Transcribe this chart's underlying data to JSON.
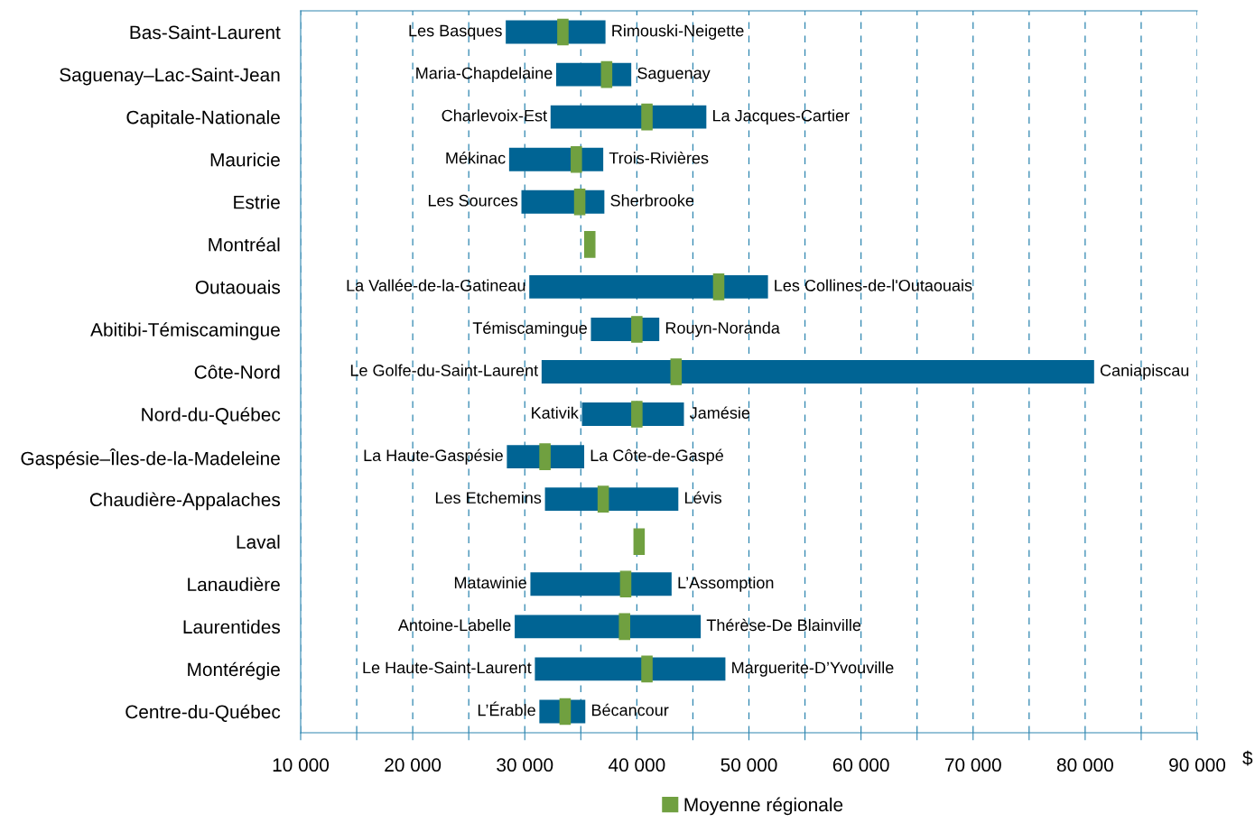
{
  "chart_data": {
    "type": "bar",
    "orientation": "horizontal",
    "categories": [
      "Bas-Saint-Laurent",
      "Saguenay–Lac-Saint-Jean",
      "Capitale-Nationale",
      "Mauricie",
      "Estrie",
      "Montréal",
      "Outaouais",
      "Abitibi-Témiscamingue",
      "Côte-Nord",
      "Nord-du-Québec",
      "Gaspésie–Îles-de-la-Madeleine",
      "Chaudière-Appalaches",
      "Laval",
      "Lanaudière",
      "Laurentides",
      "Montérégie",
      "Centre-du-Québec"
    ],
    "series": [
      {
        "color": "#006494",
        "base": [
          28300,
          32800,
          32300,
          28600,
          29700,
          null,
          30400,
          35900,
          31500,
          35100,
          28400,
          31800,
          null,
          30500,
          29100,
          30900,
          31300
        ],
        "values": [
          8900,
          6700,
          13900,
          8400,
          7400,
          null,
          21300,
          6100,
          49300,
          9100,
          6900,
          11900,
          null,
          12600,
          16600,
          17000,
          4100
        ]
      },
      {
        "type": "scatter",
        "name": "Moyenne régionale",
        "color": "#70a040",
        "marker": "square",
        "values": [
          33400,
          37300,
          40900,
          34600,
          34900,
          35800,
          47300,
          40000,
          43500,
          40000,
          31800,
          37000,
          40200,
          39000,
          38900,
          40900,
          33600
        ]
      }
    ],
    "xlabel": "$",
    "xlim": [
      10000,
      90000
    ],
    "xticks": [
      {
        "value": 10000,
        "label": "10 000"
      },
      {
        "value": 15000,
        "label": null
      },
      {
        "value": 20000,
        "label": "20 000"
      },
      {
        "value": 25000,
        "label": null
      },
      {
        "value": 30000,
        "label": "30 000"
      },
      {
        "value": 35000,
        "label": null
      },
      {
        "value": 40000,
        "label": "40 000"
      },
      {
        "value": 45000,
        "label": null
      },
      {
        "value": 50000,
        "label": "50 000"
      },
      {
        "value": 55000,
        "label": null
      },
      {
        "value": 60000,
        "label": "60 000"
      },
      {
        "value": 65000,
        "label": null
      },
      {
        "value": 70000,
        "label": "70 000"
      },
      {
        "value": 75000,
        "label": null
      },
      {
        "value": 80000,
        "label": "80 000"
      },
      {
        "value": 85000,
        "label": null
      },
      {
        "value": 90000,
        "label": "90 000"
      }
    ],
    "grid": "x",
    "legend": "bottom",
    "annotations": [
      {
        "text": "Les Basques",
        "x": 28300,
        "y": "Bas-Saint-Laurent"
      },
      {
        "text": "Rimouski-Neigette",
        "x": 37200,
        "y": "Bas-Saint-Laurent"
      },
      {
        "text": "Maria-Chapdelaine",
        "x": 32800,
        "y": "Saguenay–Lac-Saint-Jean"
      },
      {
        "text": "Saguenay",
        "x": 39500,
        "y": "Saguenay–Lac-Saint-Jean"
      },
      {
        "text": "Charlevoix-Est",
        "x": 32300,
        "y": "Capitale-Nationale"
      },
      {
        "text": "La Jacques-Cartier",
        "x": 46200,
        "y": "Capitale-Nationale"
      },
      {
        "text": "Mékinac",
        "x": 28600,
        "y": "Mauricie"
      },
      {
        "text": "Trois-Rivières",
        "x": 37000,
        "y": "Mauricie"
      },
      {
        "text": "Les Sources",
        "x": 29700,
        "y": "Estrie"
      },
      {
        "text": "Sherbrooke",
        "x": 37100,
        "y": "Estrie"
      },
      {
        "text": "La Vallée-de-la-Gatineau",
        "x": 30400,
        "y": "Outaouais"
      },
      {
        "text": "Les Collines-de-l'Outaouais",
        "x": 51700,
        "y": "Outaouais"
      },
      {
        "text": "Témiscamingue",
        "x": 35900,
        "y": "Abitibi-Témiscamingue"
      },
      {
        "text": "Rouyn-Noranda",
        "x": 42000,
        "y": "Abitibi-Témiscamingue"
      },
      {
        "text": "Le Golfe-du-Saint-Laurent",
        "x": 31500,
        "y": "Côte-Nord"
      },
      {
        "text": "Caniapiscau",
        "x": 80800,
        "y": "Côte-Nord"
      },
      {
        "text": "Kativik",
        "x": 35100,
        "y": "Nord-du-Québec"
      },
      {
        "text": "Jamésie",
        "x": 44200,
        "y": "Nord-du-Québec"
      },
      {
        "text": "La Haute-Gaspésie",
        "x": 28400,
        "y": "Gaspésie–Îles-de-la-Madeleine"
      },
      {
        "text": "La Côte-de-Gaspé",
        "x": 35300,
        "y": "Gaspésie–Îles-de-la-Madeleine"
      },
      {
        "text": "Les Etchemins",
        "x": 31800,
        "y": "Chaudière-Appalaches"
      },
      {
        "text": "Lévis",
        "x": 43700,
        "y": "Chaudière-Appalaches"
      },
      {
        "text": "Matawinie",
        "x": 30500,
        "y": "Lanaudière"
      },
      {
        "text": "L’Assomption",
        "x": 43100,
        "y": "Lanaudière"
      },
      {
        "text": "Antoine-Labelle",
        "x": 29100,
        "y": "Laurentides"
      },
      {
        "text": "Thérèse-De Blainville",
        "x": 45700,
        "y": "Laurentides"
      },
      {
        "text": "Le Haute-Saint-Laurent",
        "x": 30900,
        "y": "Montérégie"
      },
      {
        "text": "Marguerite-D’Yvouville",
        "x": 47900,
        "y": "Montérégie"
      },
      {
        "text": "L’Érable",
        "x": 31300,
        "y": "Centre-du-Québec"
      },
      {
        "text": "Bécancour",
        "x": 35400,
        "y": "Centre-du-Québec"
      }
    ]
  }
}
